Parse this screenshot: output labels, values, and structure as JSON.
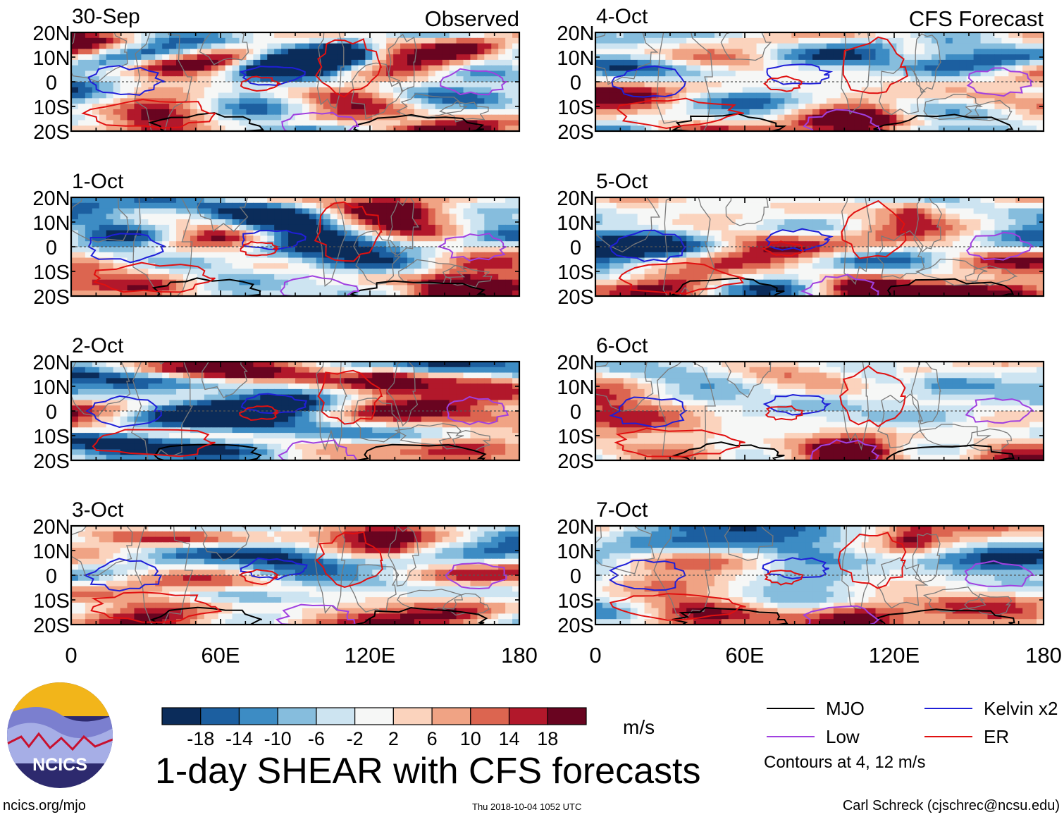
{
  "figure_title": "1-day SHEAR with CFS forecasts",
  "footer": {
    "website": "ncics.org/mjo",
    "timestamp": "Thu 2018-10-04 1052 UTC",
    "author": "Carl Schreck (cjschrec@ncsu.edu)"
  },
  "logo": {
    "text": "NCICS"
  },
  "colorbar": {
    "unit": "m/s",
    "tick_labels": [
      "-18",
      "-14",
      "-10",
      "-6",
      "-2",
      "2",
      "6",
      "10",
      "14",
      "18"
    ],
    "colors": [
      "#0b2c5a",
      "#1c5fa0",
      "#3d8cc4",
      "#86bddd",
      "#cde4f1",
      "#f6f7f6",
      "#fbd3bd",
      "#f0a384",
      "#dc6550",
      "#b2182b",
      "#690420"
    ]
  },
  "legend": {
    "items": [
      {
        "label": "MJO",
        "color": "#000000"
      },
      {
        "label": "Kelvin x2",
        "color": "#1f1fd8"
      },
      {
        "label": "Low",
        "color": "#a040e0"
      },
      {
        "label": "ER",
        "color": "#e01010"
      }
    ],
    "contour_note": "Contours at 4, 12 m/s"
  },
  "chart_data": {
    "type": "heatmap",
    "variable": "1-day vertical wind shear anomaly (m/s) with wave-filtered contours",
    "x_axis": {
      "range": [
        0,
        180
      ],
      "ticks": [
        0,
        60,
        120,
        180
      ],
      "tick_labels": [
        "0",
        "60E",
        "120E",
        "180"
      ]
    },
    "y_axis": {
      "range": [
        -20,
        20
      ],
      "ticks": [
        20,
        10,
        0,
        -10,
        -20
      ],
      "tick_labels": [
        "20N",
        "10N",
        "0",
        "10S",
        "20S"
      ]
    },
    "columns": [
      {
        "label": "Observed",
        "dates": [
          "30-Sep",
          "1-Oct",
          "2-Oct",
          "3-Oct"
        ]
      },
      {
        "label": "CFS Forecast",
        "dates": [
          "4-Oct",
          "5-Oct",
          "6-Oct",
          "7-Oct"
        ]
      }
    ],
    "contour_levels": [
      4,
      12
    ],
    "contour_series": [
      "MJO",
      "Kelvin x2",
      "Low",
      "ER"
    ]
  }
}
